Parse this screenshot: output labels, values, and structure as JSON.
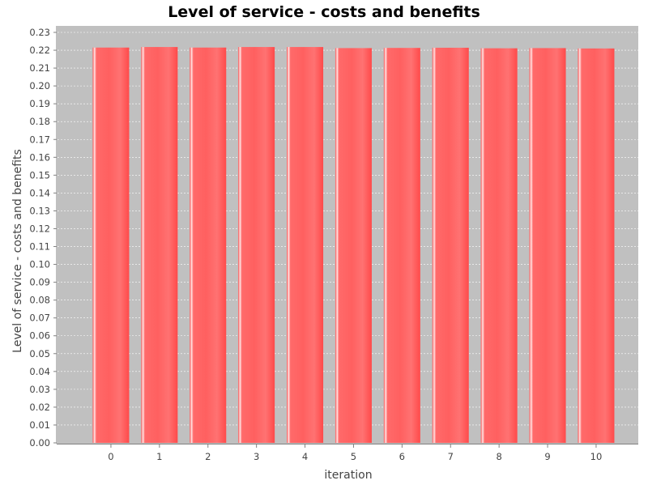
{
  "chart_data": {
    "type": "bar",
    "title": "Level of service -  costs and benefits",
    "xlabel": "iteration",
    "ylabel": "Level of service -  costs and benefits",
    "categories": [
      "0",
      "1",
      "2",
      "3",
      "4",
      "5",
      "6",
      "7",
      "8",
      "9",
      "10"
    ],
    "series": [
      {
        "name": "Level of service -  costs and benefits",
        "values": [
          0.2215,
          0.2218,
          0.2215,
          0.2218,
          0.2218,
          0.2212,
          0.2213,
          0.2214,
          0.2211,
          0.2212,
          0.221
        ]
      }
    ],
    "ylim": [
      0,
      0.23
    ],
    "yticks": [
      "0.00",
      "0.01",
      "0.02",
      "0.03",
      "0.04",
      "0.05",
      "0.06",
      "0.07",
      "0.08",
      "0.09",
      "0.10",
      "0.11",
      "0.12",
      "0.13",
      "0.14",
      "0.15",
      "0.16",
      "0.17",
      "0.18",
      "0.19",
      "0.20",
      "0.21",
      "0.22",
      "0.23"
    ],
    "grid": true,
    "legend": "none",
    "colors": {
      "bar": "#ff5555",
      "bar_highlight": "#ffffff",
      "plot_background": "#c0c0c0",
      "grid": "#ffffff"
    }
  }
}
